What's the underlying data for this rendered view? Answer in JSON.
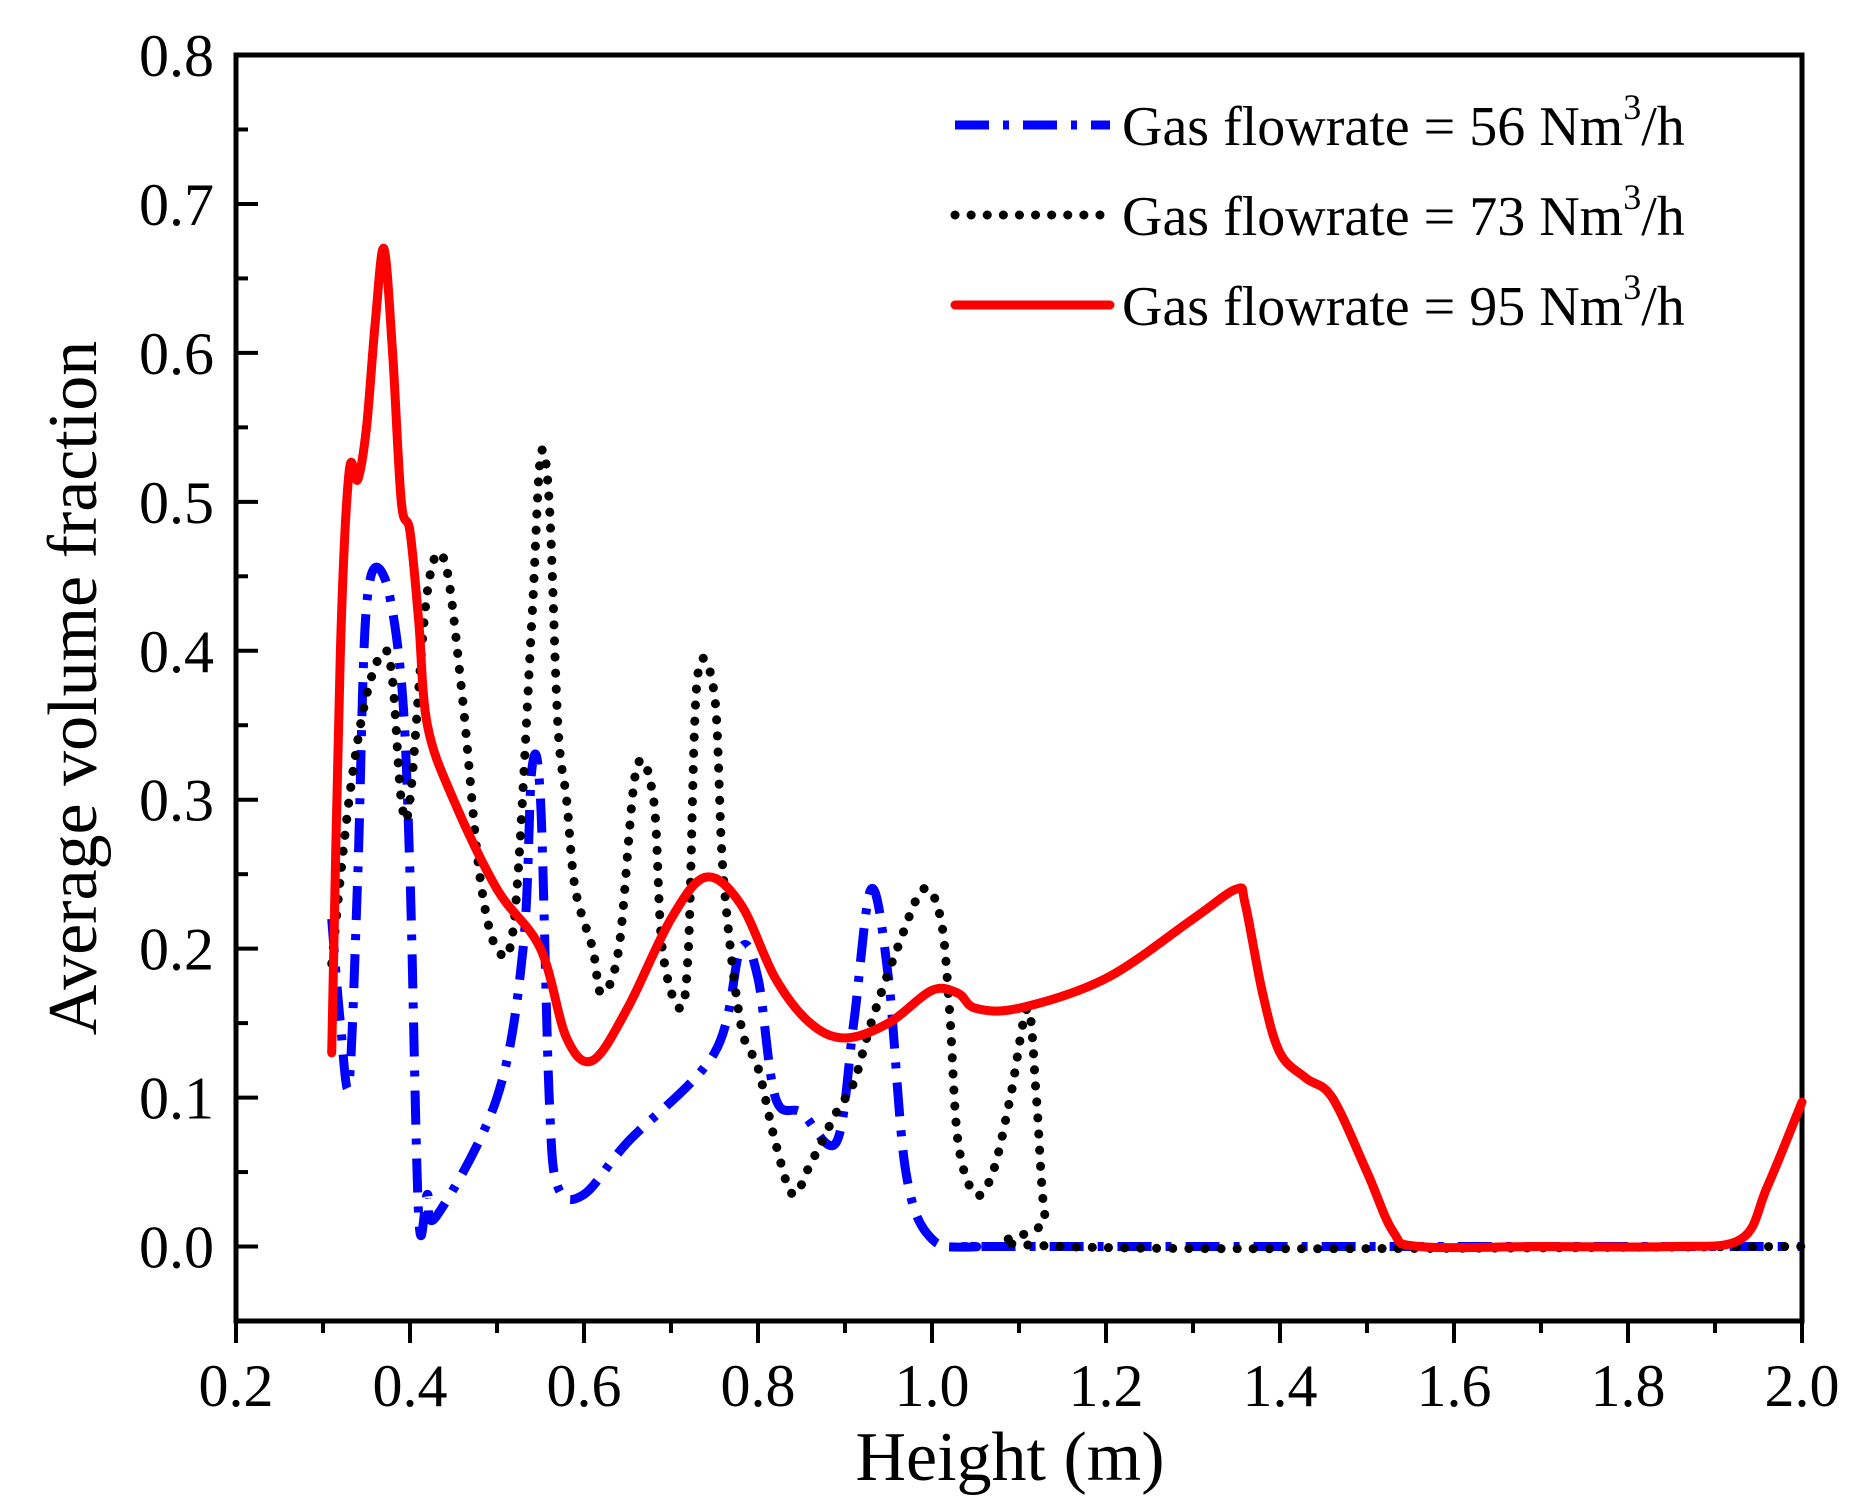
{
  "chart_data": {
    "type": "line",
    "title": "",
    "xlabel": "Height (m)",
    "ylabel": "Average volume fraction",
    "xlim": [
      0.2,
      2.0
    ],
    "ylim": [
      -0.05,
      0.8
    ],
    "xticks": [
      "0.2",
      "0.4",
      "0.6",
      "0.8",
      "1.0",
      "1.2",
      "1.4",
      "1.6",
      "1.8",
      "2.0"
    ],
    "yticks": [
      "0.0",
      "0.1",
      "0.2",
      "0.3",
      "0.4",
      "0.5",
      "0.6",
      "0.7",
      "0.8"
    ],
    "legend_position": "top-right",
    "series": [
      {
        "name": "Gas flowrate = 56 Nm3/h",
        "legend_prefix": "Gas flowrate = 56 Nm",
        "legend_sup": "3",
        "legend_suffix": "/h",
        "color": "#0000ff",
        "style": "dashdot",
        "points": [
          [
            0.31,
            0.22
          ],
          [
            0.32,
            0.15
          ],
          [
            0.33,
            0.11
          ],
          [
            0.34,
            0.25
          ],
          [
            0.35,
            0.43
          ],
          [
            0.37,
            0.45
          ],
          [
            0.39,
            0.38
          ],
          [
            0.4,
            0.25
          ],
          [
            0.41,
            0.02
          ],
          [
            0.42,
            0.035
          ],
          [
            0.43,
            0.02
          ],
          [
            0.5,
            0.1
          ],
          [
            0.53,
            0.2
          ],
          [
            0.54,
            0.32
          ],
          [
            0.55,
            0.3
          ],
          [
            0.56,
            0.1
          ],
          [
            0.57,
            0.04
          ],
          [
            0.6,
            0.035
          ],
          [
            0.65,
            0.07
          ],
          [
            0.75,
            0.13
          ],
          [
            0.78,
            0.2
          ],
          [
            0.8,
            0.18
          ],
          [
            0.82,
            0.1
          ],
          [
            0.85,
            0.09
          ],
          [
            0.89,
            0.07
          ],
          [
            0.91,
            0.15
          ],
          [
            0.93,
            0.24
          ],
          [
            0.95,
            0.18
          ],
          [
            0.97,
            0.05
          ],
          [
            1.0,
            0.005
          ],
          [
            1.05,
            0.0
          ],
          [
            1.1,
            0.0
          ],
          [
            2.0,
            0.0
          ]
        ]
      },
      {
        "name": "Gas flowrate = 73 Nm3/h",
        "legend_prefix": "Gas flowrate = 73 Nm",
        "legend_sup": "3",
        "legend_suffix": "/h",
        "color": "#000000",
        "style": "dotted",
        "points": [
          [
            0.31,
            0.19
          ],
          [
            0.33,
            0.3
          ],
          [
            0.35,
            0.37
          ],
          [
            0.37,
            0.4
          ],
          [
            0.38,
            0.38
          ],
          [
            0.39,
            0.3
          ],
          [
            0.4,
            0.3
          ],
          [
            0.42,
            0.44
          ],
          [
            0.44,
            0.46
          ],
          [
            0.46,
            0.37
          ],
          [
            0.48,
            0.25
          ],
          [
            0.5,
            0.2
          ],
          [
            0.52,
            0.22
          ],
          [
            0.54,
            0.42
          ],
          [
            0.55,
            0.53
          ],
          [
            0.56,
            0.5
          ],
          [
            0.57,
            0.35
          ],
          [
            0.58,
            0.3
          ],
          [
            0.59,
            0.24
          ],
          [
            0.61,
            0.2
          ],
          [
            0.62,
            0.17
          ],
          [
            0.64,
            0.2
          ],
          [
            0.66,
            0.32
          ],
          [
            0.68,
            0.3
          ],
          [
            0.69,
            0.2
          ],
          [
            0.71,
            0.16
          ],
          [
            0.72,
            0.2
          ],
          [
            0.73,
            0.38
          ],
          [
            0.75,
            0.37
          ],
          [
            0.76,
            0.25
          ],
          [
            0.78,
            0.15
          ],
          [
            0.8,
            0.12
          ],
          [
            0.82,
            0.07
          ],
          [
            0.84,
            0.035
          ],
          [
            0.86,
            0.055
          ],
          [
            0.89,
            0.09
          ],
          [
            0.91,
            0.11
          ],
          [
            0.93,
            0.15
          ],
          [
            0.96,
            0.2
          ],
          [
            0.99,
            0.24
          ],
          [
            1.01,
            0.22
          ],
          [
            1.02,
            0.16
          ],
          [
            1.03,
            0.07
          ],
          [
            1.05,
            0.035
          ],
          [
            1.07,
            0.05
          ],
          [
            1.09,
            0.1
          ],
          [
            1.11,
            0.16
          ],
          [
            1.12,
            0.1
          ],
          [
            1.13,
            0.02
          ],
          [
            1.15,
            0.0
          ],
          [
            2.0,
            0.0
          ]
        ]
      },
      {
        "name": "Gas flowrate = 95 Nm3/h",
        "legend_prefix": "Gas flowrate = 95 Nm",
        "legend_sup": "3",
        "legend_suffix": "/h",
        "color": "#ff0000",
        "style": "solid",
        "points": [
          [
            0.31,
            0.13
          ],
          [
            0.32,
            0.4
          ],
          [
            0.33,
            0.52
          ],
          [
            0.34,
            0.515
          ],
          [
            0.35,
            0.55
          ],
          [
            0.36,
            0.62
          ],
          [
            0.37,
            0.67
          ],
          [
            0.38,
            0.6
          ],
          [
            0.39,
            0.5
          ],
          [
            0.4,
            0.48
          ],
          [
            0.41,
            0.42
          ],
          [
            0.42,
            0.35
          ],
          [
            0.45,
            0.3
          ],
          [
            0.5,
            0.24
          ],
          [
            0.55,
            0.2
          ],
          [
            0.58,
            0.14
          ],
          [
            0.61,
            0.125
          ],
          [
            0.65,
            0.16
          ],
          [
            0.7,
            0.22
          ],
          [
            0.74,
            0.248
          ],
          [
            0.78,
            0.23
          ],
          [
            0.82,
            0.18
          ],
          [
            0.86,
            0.15
          ],
          [
            0.9,
            0.14
          ],
          [
            0.95,
            0.15
          ],
          [
            1.0,
            0.172
          ],
          [
            1.03,
            0.17
          ],
          [
            1.05,
            0.16
          ],
          [
            1.1,
            0.16
          ],
          [
            1.2,
            0.18
          ],
          [
            1.3,
            0.22
          ],
          [
            1.35,
            0.24
          ],
          [
            1.36,
            0.23
          ],
          [
            1.38,
            0.17
          ],
          [
            1.4,
            0.13
          ],
          [
            1.43,
            0.113
          ],
          [
            1.46,
            0.1
          ],
          [
            1.5,
            0.05
          ],
          [
            1.53,
            0.01
          ],
          [
            1.56,
            0.0
          ],
          [
            1.7,
            0.0
          ],
          [
            1.85,
            0.0
          ],
          [
            1.93,
            0.005
          ],
          [
            1.96,
            0.04
          ],
          [
            2.0,
            0.097
          ]
        ]
      }
    ]
  }
}
